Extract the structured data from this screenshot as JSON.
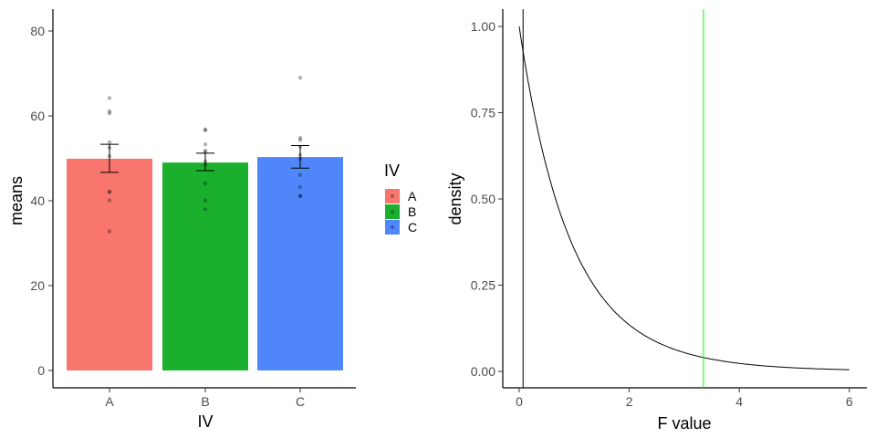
{
  "chart_data": [
    {
      "type": "bar",
      "xlabel": "IV",
      "ylabel": "means",
      "ylim": [
        -4,
        85
      ],
      "yticks": [
        "0",
        "20",
        "40",
        "60",
        "80"
      ],
      "categories": [
        "A",
        "B",
        "C"
      ],
      "values": [
        49.9,
        49.0,
        50.3
      ],
      "error_bars": [
        [
          46.7,
          53.3
        ],
        [
          47.1,
          51.2
        ],
        [
          47.7,
          53.0
        ]
      ],
      "points": [
        [
          64.2,
          61.1,
          60.6,
          53.8,
          52.5,
          50.5,
          42.1,
          42.1,
          40.1,
          32.8
        ],
        [
          56.8,
          56.6,
          53.3,
          51.8,
          51.5,
          49.3,
          48.5,
          44.1,
          40.1,
          38.0
        ],
        [
          69.0,
          54.8,
          54.3,
          52.7,
          50.8,
          49.9,
          46.1,
          43.2,
          41.1,
          41.1
        ]
      ],
      "colors": [
        "#F8766D",
        "#1AB02E",
        "#4F86FA"
      ],
      "legend": {
        "title": "IV",
        "entries": [
          "A",
          "B",
          "C"
        ],
        "placement": "right"
      }
    },
    {
      "type": "line",
      "xlabel": "F value",
      "ylabel": "density",
      "xlim": [
        -0.3,
        6.3
      ],
      "ylim": [
        -0.05,
        1.05
      ],
      "xticks": [
        "0",
        "2",
        "4",
        "6"
      ],
      "yticks": [
        "0.00",
        "0.25",
        "0.50",
        "0.75",
        "1.00"
      ],
      "curve": {
        "distribution": "F",
        "df1": 2,
        "df2": 27,
        "x_range": [
          0,
          6
        ]
      },
      "vlines": [
        {
          "x": 0.07,
          "color": "#000000"
        },
        {
          "x": 3.35,
          "color": "#00FF00"
        }
      ]
    }
  ]
}
